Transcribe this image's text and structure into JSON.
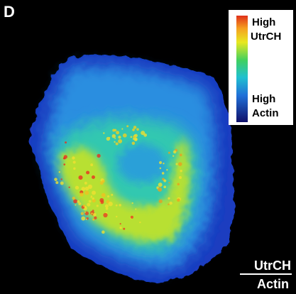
{
  "panel_label": "D",
  "legend": {
    "top": [
      "High",
      "UtrCH"
    ],
    "bottom": [
      "High",
      "Actin"
    ]
  },
  "ratio": {
    "numerator": "UtrCH",
    "denominator": "Actin"
  }
}
